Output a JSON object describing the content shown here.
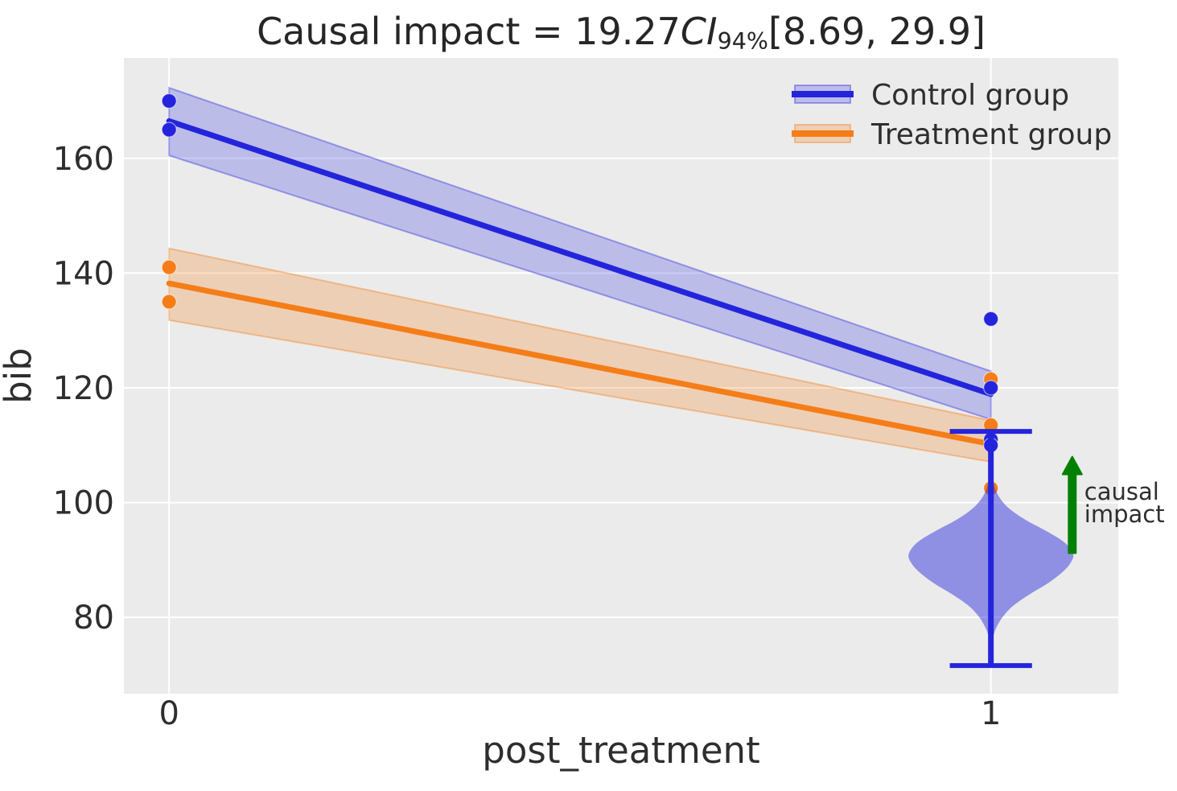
{
  "chart_data": {
    "type": "line",
    "title": "Causal impact = 19.27 CI_94% [8.69, 29.9]",
    "title_parts": {
      "prefix": "Causal impact = 19.27",
      "stat": "CI",
      "subscript": "94%",
      "interval": "[8.69, 29.9]"
    },
    "causal_impact": {
      "estimate": 19.27,
      "ci_level": "94%",
      "ci_lower": 8.69,
      "ci_upper": 29.9
    },
    "xlabel": "post_treatment",
    "ylabel": "bib",
    "x_ticks": [
      "0",
      "1"
    ],
    "x_tick_values": [
      0,
      1
    ],
    "y_ticks": [
      "80",
      "100",
      "120",
      "140",
      "160"
    ],
    "y_tick_values": [
      80,
      100,
      120,
      140,
      160
    ],
    "xlim": [
      -0.055,
      1.155
    ],
    "ylim": [
      66.7,
      177.5
    ],
    "grid": true,
    "plot_background": "#ebebeb",
    "grid_color": "#ffffff",
    "legend": {
      "position": "upper right",
      "items": [
        "Control group",
        "Treatment group"
      ]
    },
    "series": [
      {
        "name": "Control group",
        "color": "#2424dc",
        "band_fill": "rgba(36,36,220,0.24)",
        "band_edge": "rgba(36,36,220,0.38)",
        "line": {
          "x": [
            0,
            1
          ],
          "y": [
            166.5,
            118.9
          ]
        },
        "ci_band": {
          "x": [
            0,
            1
          ],
          "lower": [
            160.5,
            114.5
          ],
          "upper": [
            172.3,
            122.9
          ]
        },
        "scatter": [
          [
            0,
            170
          ],
          [
            0,
            165
          ],
          [
            1,
            132
          ],
          [
            1,
            120
          ],
          [
            1,
            111
          ],
          [
            1,
            110
          ]
        ]
      },
      {
        "name": "Treatment group",
        "color": "#f57d17",
        "band_fill": "rgba(245,125,23,0.25)",
        "band_edge": "rgba(245,125,23,0.4)",
        "line": {
          "x": [
            0,
            1
          ],
          "y": [
            138.2,
            110.2
          ]
        },
        "ci_band": {
          "x": [
            0,
            1
          ],
          "lower": [
            131.8,
            107.1
          ],
          "upper": [
            144.3,
            114.3
          ]
        },
        "scatter": [
          [
            0,
            141
          ],
          [
            0,
            135
          ],
          [
            1,
            121.5
          ],
          [
            1,
            113.5
          ],
          [
            1,
            102.5
          ]
        ]
      }
    ],
    "counterfactual_violin": {
      "center_x": 1,
      "fill": "rgba(52,52,222,0.5)",
      "profile": [
        [
          105.3,
          0.0015
        ],
        [
          103.0,
          0.004
        ],
        [
          101.0,
          0.01
        ],
        [
          99.0,
          0.022
        ],
        [
          97.0,
          0.042
        ],
        [
          95.0,
          0.068
        ],
        [
          93.0,
          0.09
        ],
        [
          91.0,
          0.1
        ],
        [
          89.5,
          0.097
        ],
        [
          88.0,
          0.088
        ],
        [
          86.0,
          0.07
        ],
        [
          84.0,
          0.047
        ],
        [
          82.0,
          0.027
        ],
        [
          80.0,
          0.014
        ],
        [
          78.0,
          0.006
        ],
        [
          76.2,
          0.0015
        ]
      ],
      "whisker": {
        "x": 1,
        "low": 71.6,
        "high": 112.4,
        "cap_halfwidth": 0.05,
        "color": "#2424dc"
      }
    },
    "arrow_annotation": {
      "label": "causal impact",
      "label_lines": [
        "causal",
        "impact"
      ],
      "color": "#008000",
      "x": 1.099,
      "from_y": 91.2,
      "to_y": 108.0
    }
  }
}
